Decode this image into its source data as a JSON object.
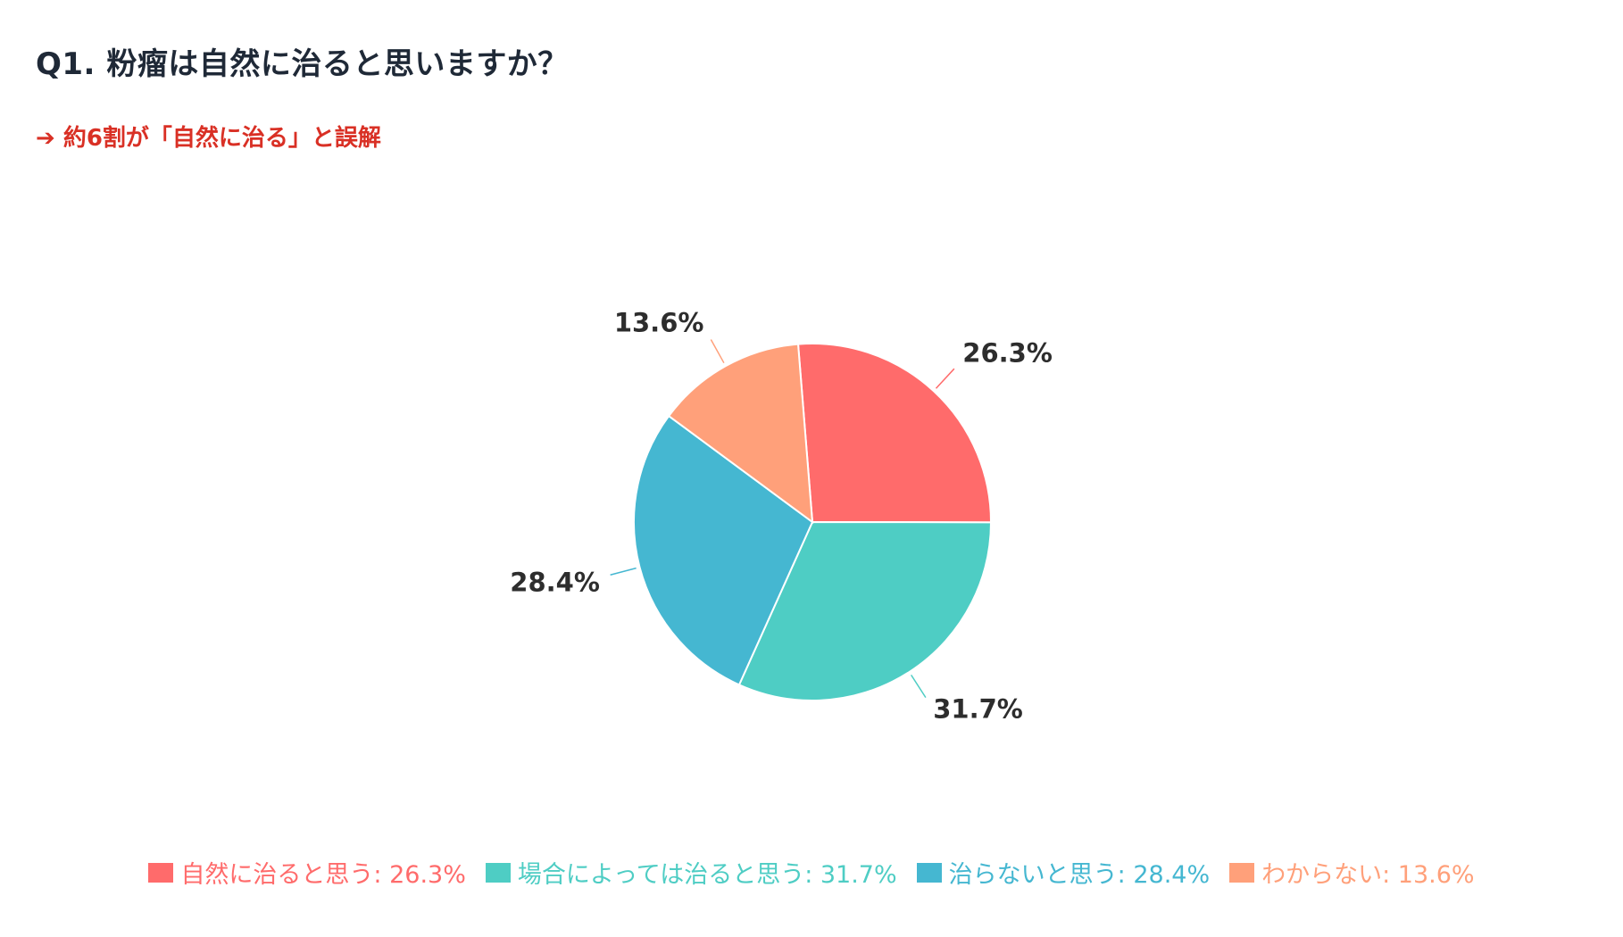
{
  "title": "Q1. 粉瘤は自然に治ると思いますか？",
  "subtitle": "➔ 約6割が「自然に治る」と誤解",
  "chart_data": {
    "type": "pie",
    "slices": [
      {
        "label": "自然に治ると思う",
        "value": 26.3,
        "display": "26.3%",
        "color": "#ff6b6b",
        "legend": "自然に治ると思う: 26.3%"
      },
      {
        "label": "場合によっては治ると思う",
        "value": 31.7,
        "display": "31.7%",
        "color": "#4ecdc4",
        "legend": "場合によっては治ると思う: 31.7%"
      },
      {
        "label": "治らないと思う",
        "value": 28.4,
        "display": "28.4%",
        "color": "#45b7d1",
        "legend": "治らないと思う: 28.4%"
      },
      {
        "label": "わからない",
        "value": 13.6,
        "display": "13.6%",
        "color": "#ffa07a",
        "legend": "わからない: 13.6%"
      }
    ],
    "legend_position": "bottom"
  }
}
